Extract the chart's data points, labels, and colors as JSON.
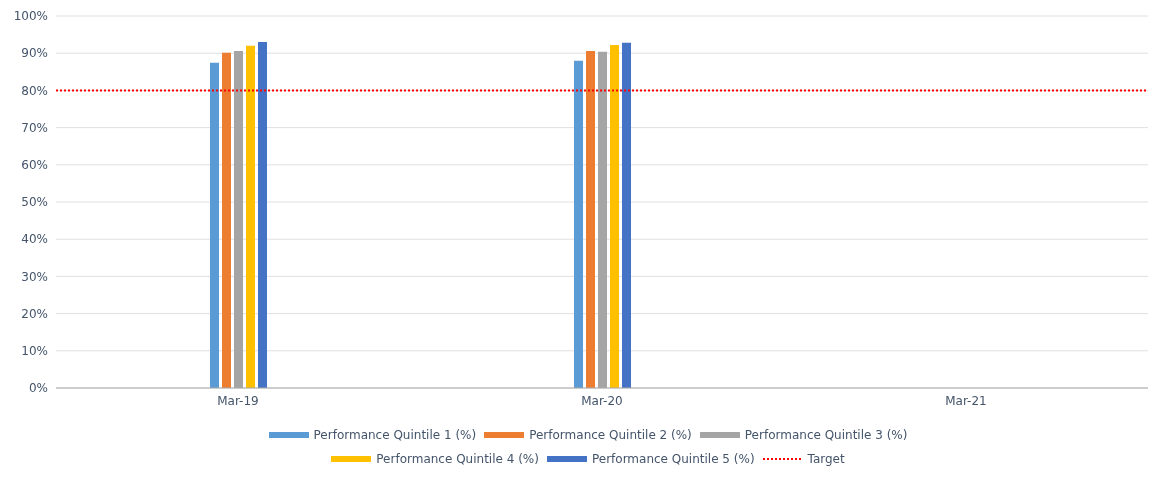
{
  "chart_data": {
    "type": "bar",
    "categories": [
      "Mar-19",
      "Mar-20",
      "Mar-21"
    ],
    "series": [
      {
        "name": "Performance Quintile 1 (%)",
        "color": "#5b9bd5",
        "values": [
          87.4,
          88.0,
          null
        ]
      },
      {
        "name": "Performance Quintile 2 (%)",
        "color": "#ed7d31",
        "values": [
          90.1,
          90.6,
          null
        ]
      },
      {
        "name": "Performance Quintile 3 (%)",
        "color": "#a5a5a5",
        "values": [
          90.6,
          90.4,
          null
        ]
      },
      {
        "name": "Performance Quintile 4 (%)",
        "color": "#ffc000",
        "values": [
          92.0,
          92.2,
          null
        ]
      },
      {
        "name": "Performance Quintile 5 (%)",
        "color": "#4472c4",
        "values": [
          93.0,
          92.8,
          null
        ]
      }
    ],
    "ylim": [
      0,
      100
    ],
    "yticks": [
      {
        "value": 0,
        "label": "0%"
      },
      {
        "value": 10,
        "label": "10%"
      },
      {
        "value": 20,
        "label": "20%"
      },
      {
        "value": 30,
        "label": "30%"
      },
      {
        "value": 40,
        "label": "40%"
      },
      {
        "value": 50,
        "label": "50%"
      },
      {
        "value": 60,
        "label": "60%"
      },
      {
        "value": 70,
        "label": "70%"
      },
      {
        "value": 80,
        "label": "80%"
      },
      {
        "value": 90,
        "label": "90%"
      },
      {
        "value": 100,
        "label": "100%"
      }
    ],
    "ref_lines": [
      {
        "axis": "y",
        "value": 80,
        "label": "Target",
        "color": "#ff0000",
        "line_style": "dotted"
      }
    ],
    "grid": "y",
    "legend": "bottom"
  }
}
